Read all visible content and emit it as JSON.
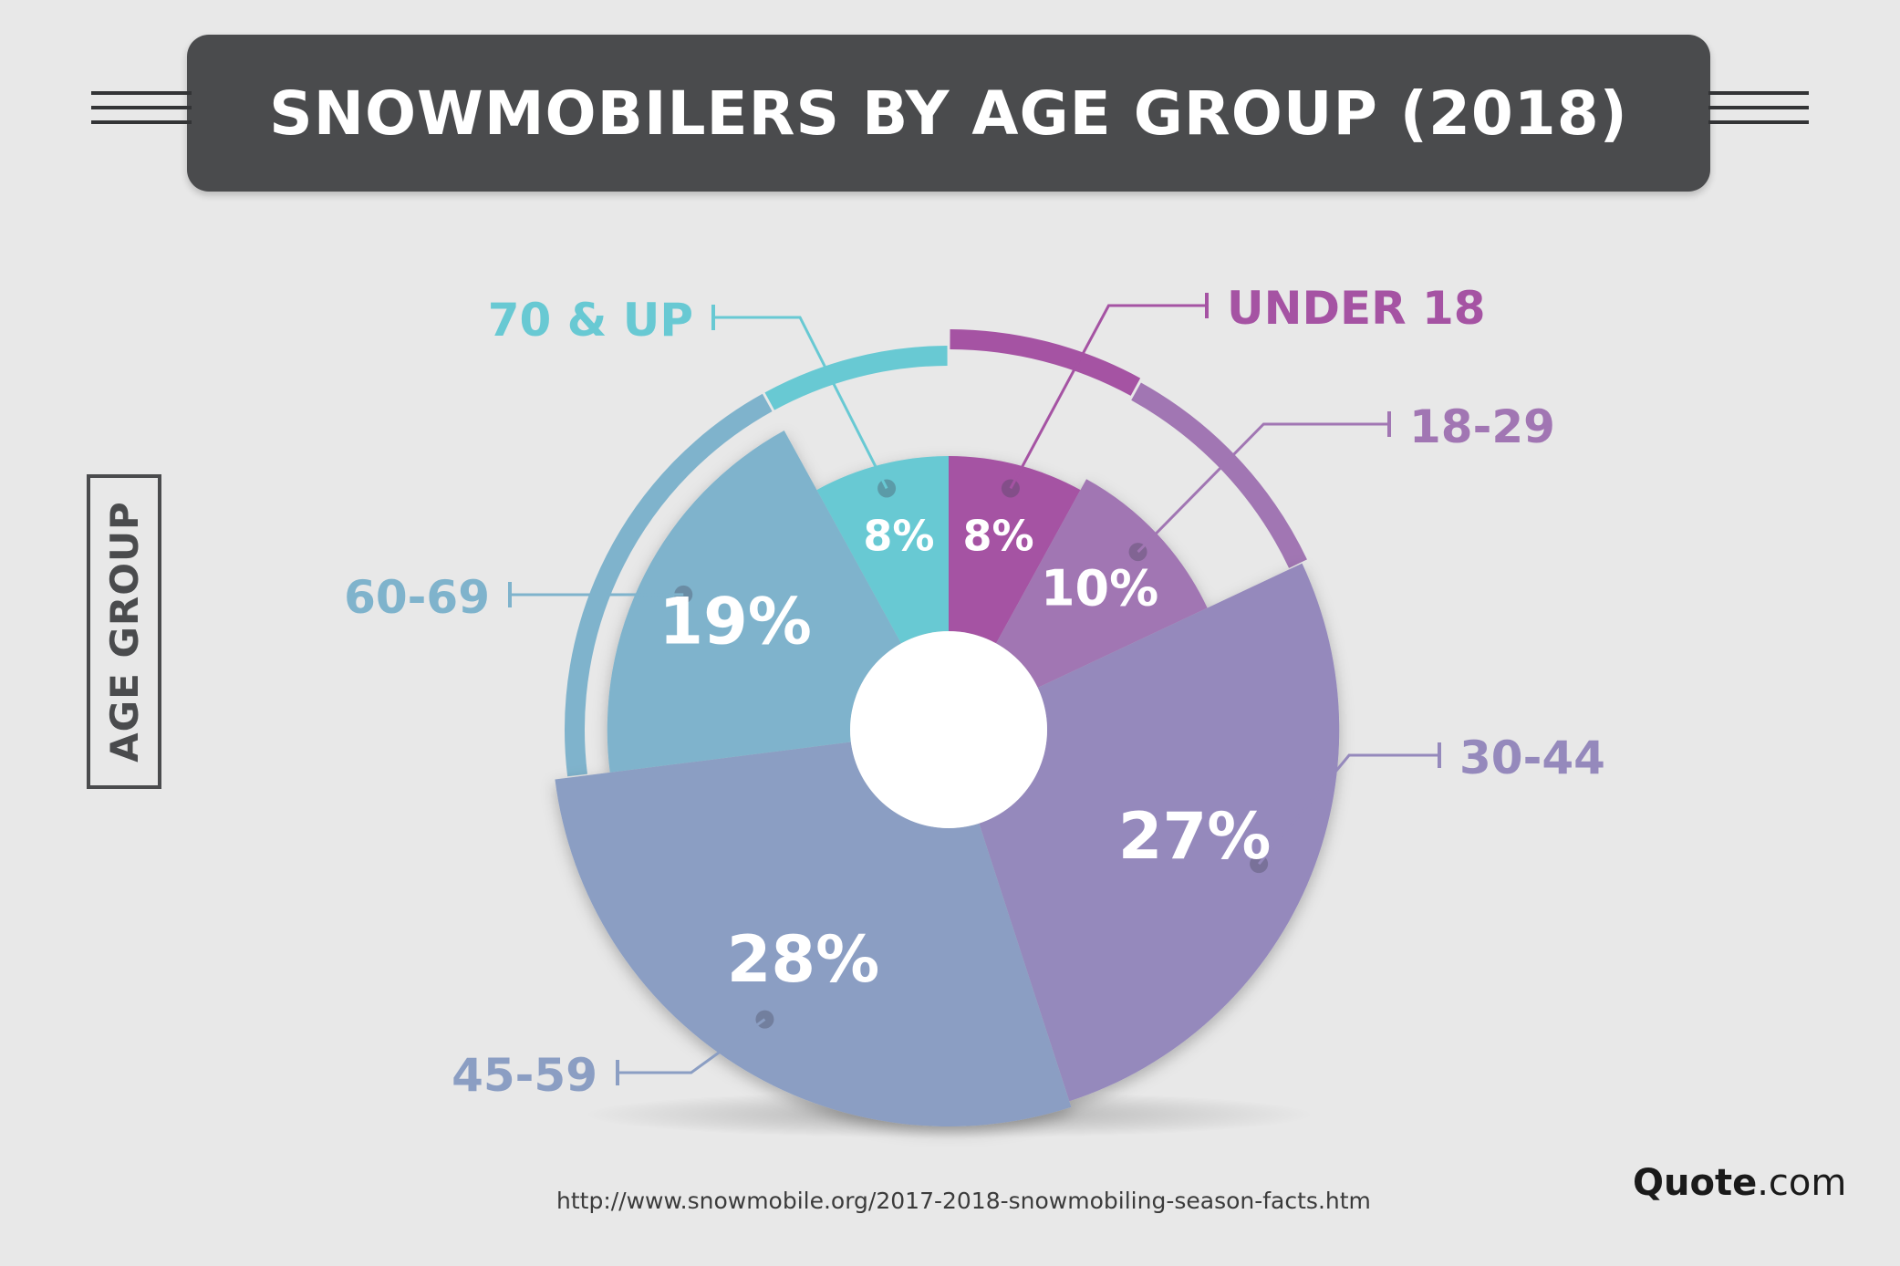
{
  "title": "SNOWMOBILERS BY AGE GROUP (2018)",
  "side_label": "AGE GROUP",
  "source": "http://www.snowmobile.org/2017-2018-snowmobiling-season-facts.htm",
  "brand": {
    "strong": "Quote",
    "rest": ".com"
  },
  "colors": {
    "background": "#e8e8e8",
    "banner": "#4a4b4d",
    "hole": "#ffffff"
  },
  "chart_data": {
    "type": "pie",
    "subtype": "donut-polar",
    "title": "SNOWMOBILERS BY AGE GROUP (2018)",
    "unit": "%",
    "categories": [
      "UNDER 18",
      "18-29",
      "30-44",
      "45-59",
      "60-69",
      "70 & UP"
    ],
    "values": [
      8,
      10,
      27,
      28,
      19,
      8
    ],
    "labels": [
      "8%",
      "10%",
      "27%",
      "28%",
      "19%",
      "8%"
    ],
    "colors": [
      "#a553a3",
      "#a176b3",
      "#9589bc",
      "#8b9ec3",
      "#7fb3cc",
      "#68c9d3"
    ],
    "legend": "callouts around chart"
  }
}
